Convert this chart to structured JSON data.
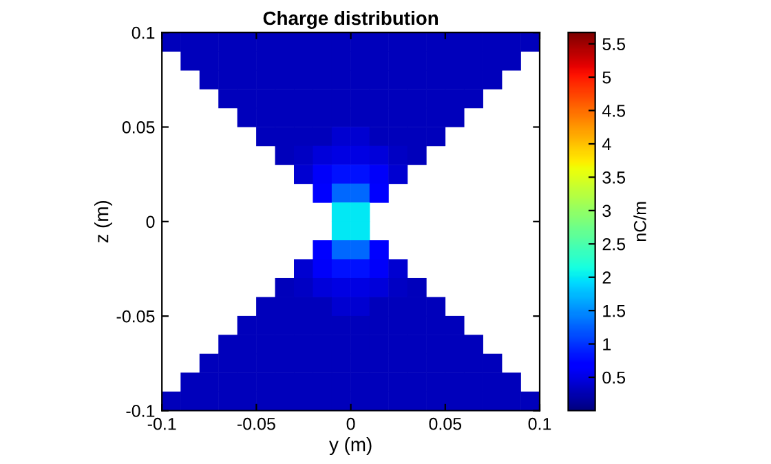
{
  "chart_data": {
    "type": "scatter",
    "title": "Charge distribution",
    "xlabel": "y (m)",
    "ylabel": "z (m)",
    "clabel": "nC/m",
    "xlim": [
      -0.1,
      0.1
    ],
    "ylim": [
      -0.1,
      0.1
    ],
    "xticks": [
      -0.1,
      -0.05,
      0,
      0.05,
      0.1
    ],
    "yticks": [
      -0.1,
      -0.05,
      0,
      0.05,
      0.1
    ],
    "clim": [
      0,
      5.67
    ],
    "cticks": [
      0.5,
      1,
      1.5,
      2,
      2.5,
      3,
      3.5,
      4,
      4.5,
      5,
      5.5
    ],
    "marker": "square",
    "grid": false,
    "legend": false,
    "series": [
      {
        "x": [
          -0.095,
          -0.085,
          -0.075,
          -0.065,
          -0.055,
          -0.045,
          -0.035,
          -0.025,
          -0.015,
          -0.005,
          0.005,
          0.015,
          0.025,
          0.035,
          0.045,
          0.055,
          0.065,
          0.075,
          0.085,
          0.095,
          -0.085,
          -0.075,
          -0.065,
          -0.055,
          -0.045,
          -0.035,
          -0.025,
          -0.015,
          -0.005,
          0.005,
          0.015,
          0.025,
          0.035,
          0.045,
          0.055,
          0.065,
          0.075,
          0.085,
          -0.075,
          -0.065,
          -0.055,
          -0.045,
          -0.035,
          -0.025,
          -0.015,
          -0.005,
          0.005,
          0.015,
          0.025,
          0.035,
          0.045,
          0.055,
          0.065,
          0.075,
          -0.065,
          -0.055,
          -0.045,
          -0.035,
          -0.025,
          -0.015,
          -0.005,
          0.005,
          0.015,
          0.025,
          0.035,
          0.045,
          0.055,
          0.065,
          -0.055,
          -0.045,
          -0.035,
          -0.025,
          -0.015,
          -0.005,
          0.005,
          0.015,
          0.025,
          0.035,
          0.045,
          0.055,
          -0.045,
          -0.035,
          -0.025,
          -0.015,
          -0.005,
          0.005,
          0.015,
          0.025,
          0.035,
          0.045,
          -0.035,
          -0.025,
          -0.015,
          -0.005,
          0.005,
          0.015,
          0.025,
          0.035,
          -0.025,
          -0.015,
          -0.005,
          0.005,
          0.015,
          0.025,
          -0.015,
          -0.005,
          0.005,
          0.015,
          -0.005,
          0.005,
          -0.005,
          0.005,
          -0.015,
          -0.005,
          0.005,
          0.015,
          -0.025,
          -0.015,
          -0.005,
          0.005,
          0.015,
          0.025,
          -0.035,
          -0.025,
          -0.015,
          -0.005,
          0.005,
          0.015,
          0.025,
          0.035,
          -0.045,
          -0.035,
          -0.025,
          -0.015,
          -0.005,
          0.005,
          0.015,
          0.025,
          0.035,
          0.045,
          -0.055,
          -0.045,
          -0.035,
          -0.025,
          -0.015,
          -0.005,
          0.005,
          0.015,
          0.025,
          0.035,
          0.045,
          0.055,
          -0.065,
          -0.055,
          -0.045,
          -0.035,
          -0.025,
          -0.015,
          -0.005,
          0.005,
          0.015,
          0.025,
          0.035,
          0.045,
          0.055,
          0.065,
          -0.075,
          -0.065,
          -0.055,
          -0.045,
          -0.035,
          -0.025,
          -0.015,
          -0.005,
          0.005,
          0.015,
          0.025,
          0.035,
          0.045,
          0.055,
          0.065,
          0.075,
          -0.085,
          -0.075,
          -0.065,
          -0.055,
          -0.045,
          -0.035,
          -0.025,
          -0.015,
          -0.005,
          0.005,
          0.015,
          0.025,
          0.035,
          0.045,
          0.055,
          0.065,
          0.075,
          0.085,
          -0.095,
          -0.085,
          -0.075,
          -0.065,
          -0.055,
          -0.045,
          -0.035,
          -0.025,
          -0.015,
          -0.005,
          0.005,
          0.015,
          0.025,
          0.035,
          0.045,
          0.055,
          0.065,
          0.075,
          0.085,
          0.095
        ],
        "values": [
          0.095,
          0.095,
          0.095,
          0.095,
          0.095,
          0.095,
          0.095,
          0.095,
          0.095,
          0.095,
          0.095,
          0.095,
          0.095,
          0.095,
          0.095,
          0.095,
          0.095,
          0.095,
          0.095,
          0.095,
          0.085,
          0.085,
          0.085,
          0.085,
          0.085,
          0.085,
          0.085,
          0.085,
          0.085,
          0.085,
          0.085,
          0.085,
          0.085,
          0.085,
          0.085,
          0.085,
          0.085,
          0.085,
          0.075,
          0.075,
          0.075,
          0.075,
          0.075,
          0.075,
          0.075,
          0.075,
          0.075,
          0.075,
          0.075,
          0.075,
          0.075,
          0.075,
          0.075,
          0.075,
          0.065,
          0.065,
          0.065,
          0.065,
          0.065,
          0.065,
          0.065,
          0.065,
          0.065,
          0.065,
          0.065,
          0.065,
          0.065,
          0.065,
          0.055,
          0.055,
          0.055,
          0.055,
          0.055,
          0.055,
          0.055,
          0.055,
          0.055,
          0.055,
          0.055,
          0.055,
          0.045,
          0.045,
          0.045,
          0.045,
          0.045,
          0.045,
          0.045,
          0.045,
          0.045,
          0.045,
          0.035,
          0.035,
          0.035,
          0.035,
          0.035,
          0.035,
          0.035,
          0.035,
          0.025,
          0.025,
          0.025,
          0.025,
          0.025,
          0.025,
          0.015,
          0.015,
          0.015,
          0.015,
          0.005,
          0.005,
          -0.005,
          -0.005,
          -0.015,
          -0.015,
          -0.015,
          -0.015,
          -0.025,
          -0.025,
          -0.025,
          -0.025,
          -0.025,
          -0.025,
          -0.035,
          -0.035,
          -0.035,
          -0.035,
          -0.035,
          -0.035,
          -0.035,
          -0.035,
          -0.045,
          -0.045,
          -0.045,
          -0.045,
          -0.045,
          -0.045,
          -0.045,
          -0.045,
          -0.045,
          -0.045,
          -0.055,
          -0.055,
          -0.055,
          -0.055,
          -0.055,
          -0.055,
          -0.055,
          -0.055,
          -0.055,
          -0.055,
          -0.055,
          -0.055,
          -0.065,
          -0.065,
          -0.065,
          -0.065,
          -0.065,
          -0.065,
          -0.065,
          -0.065,
          -0.065,
          -0.065,
          -0.065,
          -0.065,
          -0.065,
          -0.065,
          -0.075,
          -0.075,
          -0.075,
          -0.075,
          -0.075,
          -0.075,
          -0.075,
          -0.075,
          -0.075,
          -0.075,
          -0.075,
          -0.075,
          -0.075,
          -0.075,
          -0.075,
          -0.075,
          -0.085,
          -0.085,
          -0.085,
          -0.085,
          -0.085,
          -0.085,
          -0.085,
          -0.085,
          -0.085,
          -0.085,
          -0.085,
          -0.085,
          -0.085,
          -0.085,
          -0.085,
          -0.085,
          -0.085,
          -0.085,
          -0.095,
          -0.095,
          -0.095,
          -0.095,
          -0.095,
          -0.095,
          -0.095,
          -0.095,
          -0.095,
          -0.095,
          -0.095,
          -0.095,
          -0.095,
          -0.095,
          -0.095,
          -0.095,
          -0.095,
          -0.095,
          -0.095,
          -0.095
        ],
        "cvalues": [
          0.3,
          0.3,
          0.3,
          0.3,
          0.3,
          0.3,
          0.3,
          0.3,
          0.3,
          0.3,
          0.3,
          0.3,
          0.3,
          0.3,
          0.3,
          0.3,
          0.3,
          0.3,
          0.3,
          0.3,
          0.3,
          0.3,
          0.3,
          0.3,
          0.3,
          0.3,
          0.3,
          0.3,
          0.3,
          0.3,
          0.3,
          0.3,
          0.3,
          0.3,
          0.3,
          0.3,
          0.3,
          0.3,
          0.3,
          0.3,
          0.3,
          0.3,
          0.3,
          0.3,
          0.3,
          0.3,
          0.3,
          0.3,
          0.3,
          0.3,
          0.3,
          0.3,
          0.3,
          0.3,
          0.3,
          0.3,
          0.3,
          0.3,
          0.3,
          0.3,
          0.3,
          0.3,
          0.3,
          0.3,
          0.3,
          0.3,
          0.3,
          0.3,
          0.3,
          0.3,
          0.3,
          0.3,
          0.3,
          0.3,
          0.3,
          0.3,
          0.3,
          0.3,
          0.3,
          0.3,
          0.3,
          0.3,
          0.3,
          0.3,
          0.4,
          0.4,
          0.3,
          0.3,
          0.3,
          0.3,
          0.3,
          0.35,
          0.45,
          0.5,
          0.5,
          0.45,
          0.35,
          0.3,
          0.4,
          0.6,
          0.8,
          0.8,
          0.6,
          0.4,
          0.7,
          1.3,
          1.3,
          0.7,
          2.0,
          2.0,
          2.0,
          2.0,
          0.7,
          1.3,
          1.3,
          0.7,
          0.4,
          0.6,
          0.8,
          0.8,
          0.6,
          0.4,
          0.3,
          0.35,
          0.45,
          0.5,
          0.5,
          0.45,
          0.35,
          0.3,
          0.3,
          0.3,
          0.3,
          0.3,
          0.4,
          0.4,
          0.3,
          0.3,
          0.3,
          0.3,
          0.3,
          0.3,
          0.3,
          0.3,
          0.3,
          0.3,
          0.3,
          0.3,
          0.3,
          0.3,
          0.3,
          0.3,
          0.3,
          0.3,
          0.3,
          0.3,
          0.3,
          0.3,
          0.3,
          0.3,
          0.3,
          0.3,
          0.3,
          0.3,
          0.3,
          0.3,
          0.3,
          0.3,
          0.3,
          0.3,
          0.3,
          0.3,
          0.3,
          0.3,
          0.3,
          0.3,
          0.3,
          0.3,
          0.3,
          0.3,
          0.3,
          0.3,
          0.3,
          0.3,
          0.3,
          0.3,
          0.3,
          0.3,
          0.3,
          0.3,
          0.3,
          0.3,
          0.3,
          0.3,
          0.3,
          0.3,
          0.3,
          0.3,
          0.3,
          0.3,
          0.3,
          0.3,
          0.3,
          0.3,
          0.3,
          0.3,
          0.3,
          0.3,
          0.3,
          0.3,
          0.3,
          0.3,
          0.3,
          0.3,
          0.3,
          0.3,
          0.3,
          0.3,
          0.3,
          0.3
        ]
      }
    ]
  }
}
